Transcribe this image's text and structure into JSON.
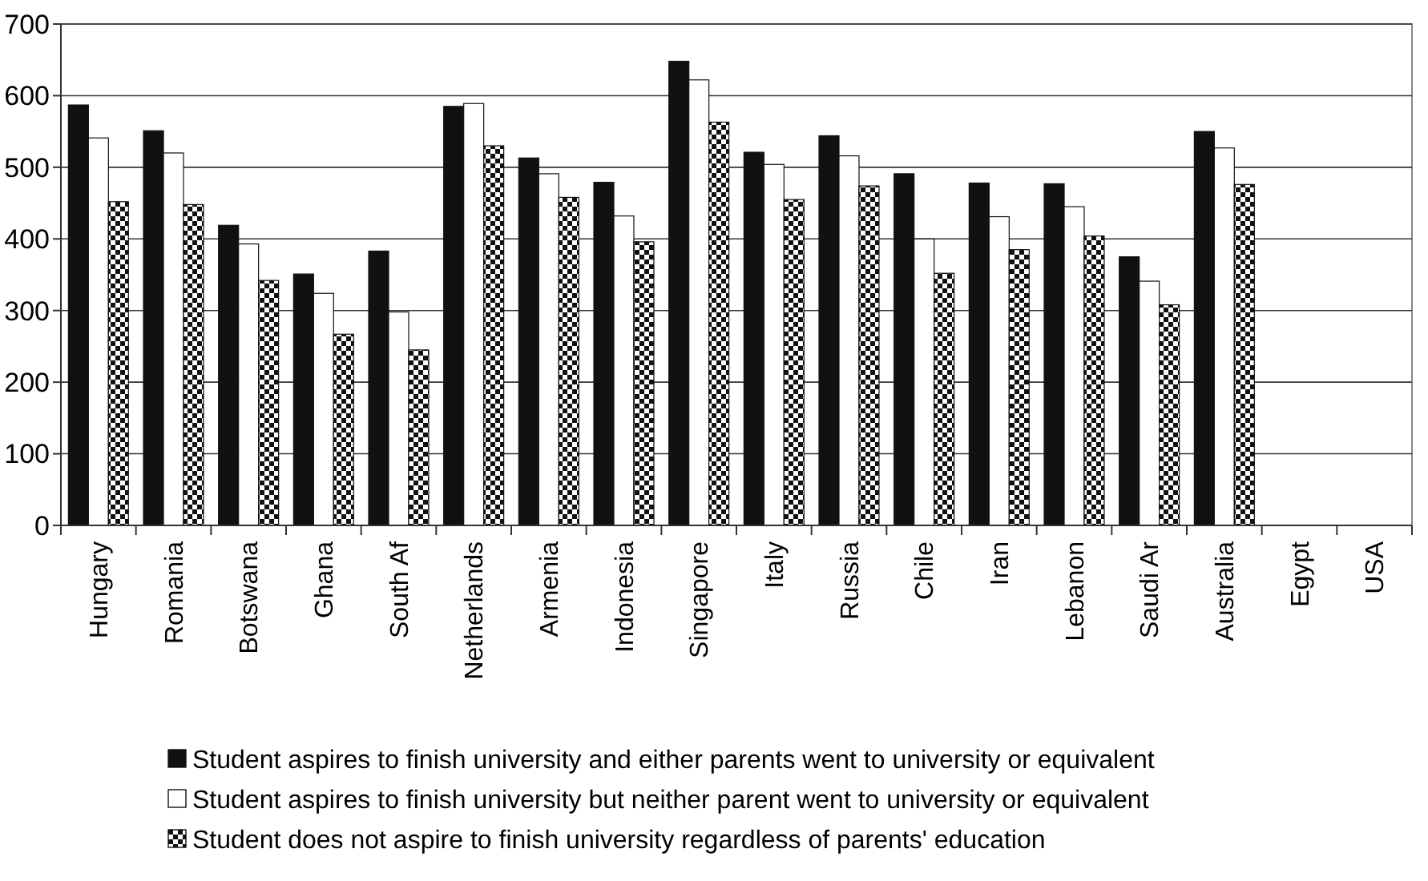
{
  "chart_data": {
    "type": "bar",
    "categories": [
      "Hungary",
      "Romania",
      "Botswana",
      "Ghana",
      "South Af",
      "Netherlands",
      "Armenia",
      "Indonesia",
      "Singapore",
      "Italy",
      "Russia",
      "Chile",
      "Iran",
      "Lebanon",
      "Saudi Ar",
      "Australia",
      "Egypt",
      "USA"
    ],
    "series": [
      {
        "name": "Student aspires to finish university and either parents went to university or equivalent",
        "color": "#111111",
        "values": [
          587,
          551,
          419,
          351,
          383,
          585,
          513,
          479,
          648,
          521,
          544,
          491,
          478,
          477,
          375,
          550,
          null,
          null
        ]
      },
      {
        "name": "Student aspires to finish university but neither parent went to university or equivalent",
        "color": "#ffffff",
        "values": [
          541,
          520,
          393,
          324,
          298,
          589,
          491,
          432,
          622,
          504,
          516,
          400,
          431,
          445,
          341,
          527,
          null,
          null
        ]
      },
      {
        "name": "Student does not aspire to finish university regardless of parents' education",
        "color": "#111111",
        "values": [
          452,
          448,
          342,
          267,
          245,
          530,
          458,
          396,
          563,
          455,
          474,
          352,
          385,
          404,
          308,
          476,
          null,
          null
        ]
      }
    ],
    "ylim": [
      0,
      700
    ],
    "yticks": [
      0,
      100,
      200,
      300,
      400,
      500,
      600,
      700
    ],
    "grid": "y",
    "legend": "bottom"
  }
}
